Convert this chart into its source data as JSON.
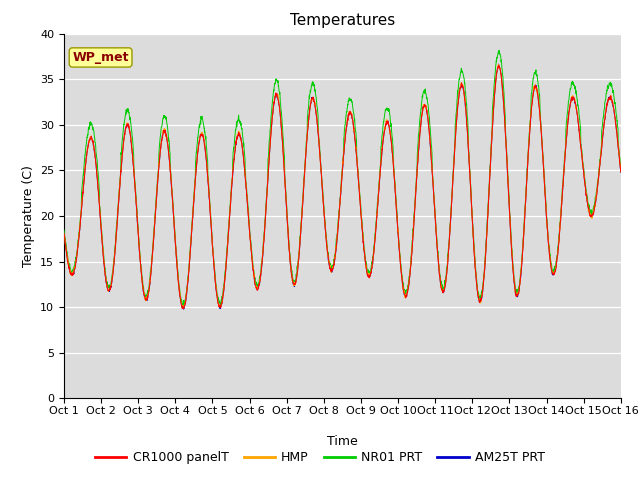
{
  "title": "Temperatures",
  "xlabel": "Time",
  "ylabel": "Temperature (C)",
  "ylim": [
    0,
    40
  ],
  "yticks": [
    0,
    5,
    10,
    15,
    20,
    25,
    30,
    35,
    40
  ],
  "n_days": 15,
  "xtick_labels": [
    "Oct 1",
    "Oct 2",
    "Oct 3",
    "Oct 4",
    "Oct 5",
    "Oct 6",
    "Oct 7",
    "Oct 8",
    "Oct 9",
    "Oct 10",
    "Oct 11",
    "Oct 12",
    "Oct 13",
    "Oct 14",
    "Oct 15",
    "Oct 16"
  ],
  "annotation_text": "WP_met",
  "annotation_color": "#8B0000",
  "annotation_bg": "#FFFF99",
  "annotation_border": "#999900",
  "bg_color": "#DCDCDC",
  "series_colors": [
    "#FF0000",
    "#FFA500",
    "#00CC00",
    "#0000CC"
  ],
  "series_names": [
    "CR1000 panelT",
    "HMP",
    "NR01 PRT",
    "AM25T PRT"
  ],
  "day_maxes": [
    25,
    30,
    30,
    29,
    29,
    29,
    35,
    32,
    31,
    30,
    33,
    35,
    37,
    33,
    33
  ],
  "day_mins": [
    14,
    12,
    11,
    10,
    9.5,
    12,
    12,
    14,
    14,
    11,
    12,
    10.5,
    11,
    12,
    20
  ],
  "title_fontsize": 11,
  "axis_fontsize": 9,
  "tick_fontsize": 8,
  "legend_fontsize": 9
}
